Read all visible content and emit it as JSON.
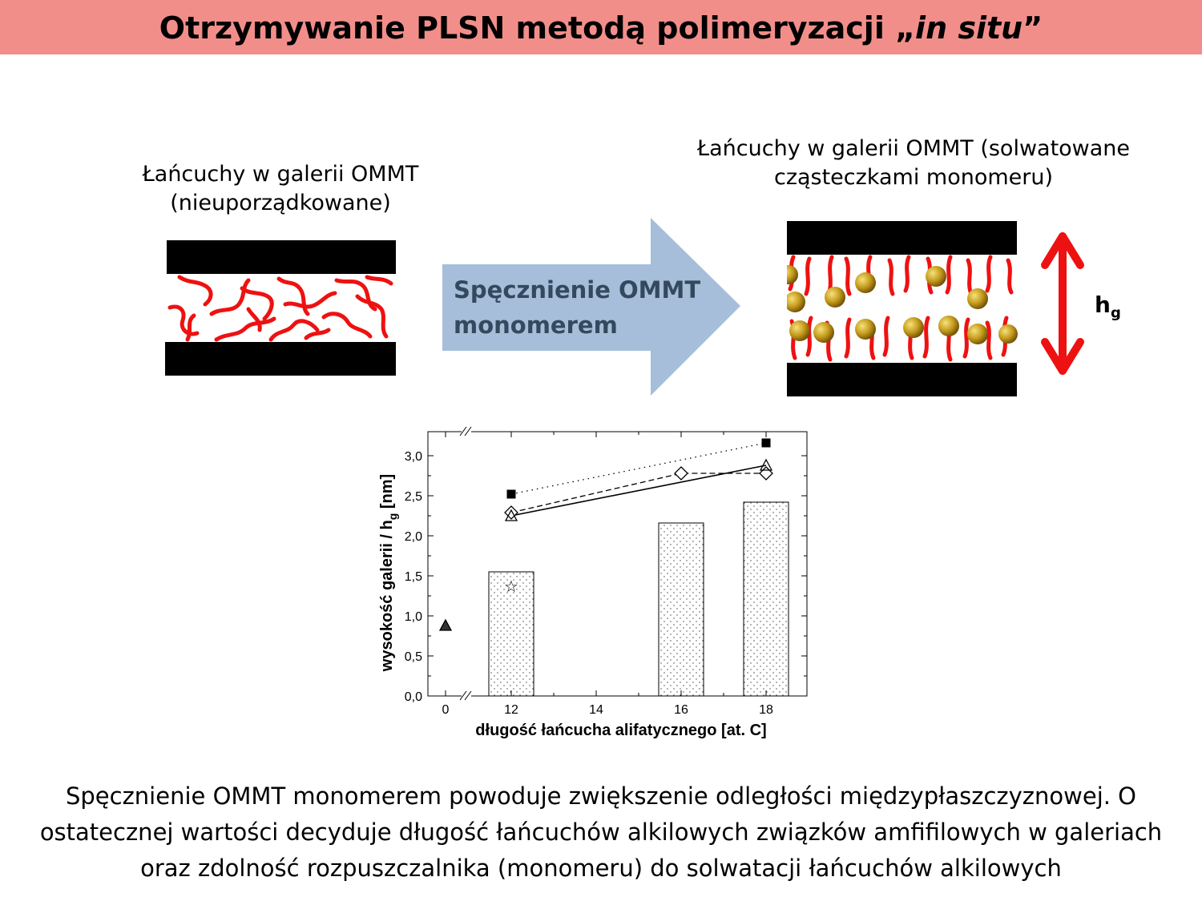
{
  "title": {
    "main": "Otrzymywanie PLSN metodą polimeryzacji „",
    "italic": "in situ",
    "end": "”"
  },
  "left_caption": [
    "Łańcuchy w galerii OMMT",
    "(nieuporządkowane)"
  ],
  "right_caption": [
    "Łańcuchy w galerii OMMT (solwatowane",
    "cząsteczkami monomeru)"
  ],
  "arrow_label": [
    "Spęcznienie  OMMT",
    "monomerem"
  ],
  "hg_label": {
    "main": "h",
    "sub": "g"
  },
  "colors": {
    "title_bg": "#f28e8a",
    "chain": "#ee1111",
    "arrow_fill": "#a6bed9",
    "arrow_text": "#34495e",
    "double_arrow": "#ee1111",
    "monomer_ball": "#b8901a"
  },
  "chart_data": {
    "type": "bar",
    "xlabel": "długość łańcucha alifatycznego [at. C]",
    "ylabel": "wysokość galerii / h",
    "ylabel_sub": "g",
    "ylabel_end": " [nm]",
    "x_ticks": [
      "0",
      "12",
      "14",
      "16",
      "18"
    ],
    "y_ticks": [
      "0,0",
      "0,5",
      "1,0",
      "1,5",
      "2,0",
      "2,5",
      "3,0"
    ],
    "ylim": [
      0,
      3.3
    ],
    "axis_break": true,
    "bars": [
      {
        "x": 12,
        "value": 1.55
      },
      {
        "x": 16,
        "value": 2.16
      },
      {
        "x": 18,
        "value": 2.42
      }
    ],
    "series": [
      {
        "marker": "filled-square",
        "line": "dotted",
        "points": [
          [
            12,
            2.52
          ],
          [
            18,
            3.16
          ]
        ]
      },
      {
        "marker": "open-diamond",
        "line": "dashed",
        "points": [
          [
            12,
            2.29
          ],
          [
            16,
            2.78
          ],
          [
            18,
            2.78
          ]
        ]
      },
      {
        "marker": "open-triangle",
        "line": "solid",
        "points": [
          [
            12,
            2.25
          ],
          [
            18,
            2.88
          ]
        ]
      },
      {
        "marker": "filled-triangle",
        "line": "none",
        "points": [
          [
            0,
            0.88
          ]
        ]
      },
      {
        "marker": "star",
        "line": "none",
        "points": [
          [
            12,
            1.37
          ]
        ]
      }
    ]
  },
  "bottom_text": [
    "Spęcznienie OMMT monomerem powoduje zwiększenie odległości międzypłaszczyznowej. O",
    "ostatecznej wartości decyduje długość łańcuchów alkilowych związków amfifilowych w galeriach",
    "oraz zdolność rozpuszczalnika (monomeru) do solwatacji łańcuchów alkilowych"
  ]
}
